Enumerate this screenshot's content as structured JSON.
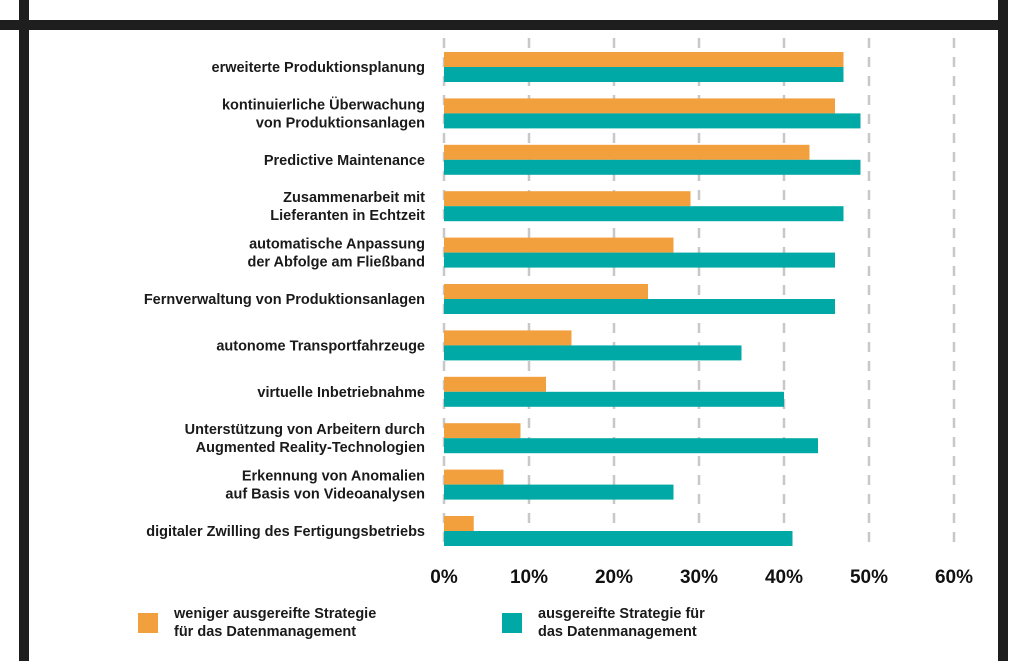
{
  "chart_data": {
    "type": "bar",
    "orientation": "horizontal",
    "title": "",
    "xlabel": "",
    "ylabel": "",
    "xlim": [
      0,
      60
    ],
    "x_ticks": [
      0,
      10,
      20,
      30,
      40,
      50,
      60
    ],
    "x_tick_labels": [
      "0%",
      "10%",
      "20%",
      "30%",
      "40%",
      "50%",
      "60%"
    ],
    "grid": "vertical dashed",
    "legend_position": "bottom",
    "categories": [
      [
        "erweiterte Produktionsplanung"
      ],
      [
        "kontinuierliche Überwachung",
        "von Produktionsanlagen"
      ],
      [
        "Predictive Maintenance"
      ],
      [
        "Zusammenarbeit mit",
        "Lieferanten in Echtzeit"
      ],
      [
        "automatische Anpassung",
        "der Abfolge am Fließband"
      ],
      [
        "Fernverwaltung von Produktionsanlagen"
      ],
      [
        "autonome Transportfahrzeuge"
      ],
      [
        "virtuelle Inbetriebnahme"
      ],
      [
        "Unterstützung von Arbeitern durch",
        "Augmented Reality-Technologien"
      ],
      [
        "Erkennung von Anomalien",
        "auf Basis von Videoanalysen"
      ],
      [
        "digitaler Zwilling des Fertigungsbetriebs"
      ]
    ],
    "series": [
      {
        "name": "weniger ausgereifte Strategie für das Datenmanagement",
        "legend_lines": [
          "weniger ausgereifte Strategie",
          "für das Datenmanagement"
        ],
        "color": "#F2A03D",
        "values": [
          47,
          46,
          43,
          29,
          27,
          24,
          15,
          12,
          9,
          7,
          3.5
        ]
      },
      {
        "name": "ausgereifte Strategie für das Datenmanagement",
        "legend_lines": [
          "ausgereifte Strategie für",
          "das Datenmanagement"
        ],
        "color": "#00A9A5",
        "values": [
          47,
          49,
          49,
          47,
          46,
          46,
          35,
          40,
          44,
          27,
          41
        ]
      }
    ]
  },
  "colors": {
    "frame": "#1e1e1e",
    "grid": "#c8c8c8"
  }
}
